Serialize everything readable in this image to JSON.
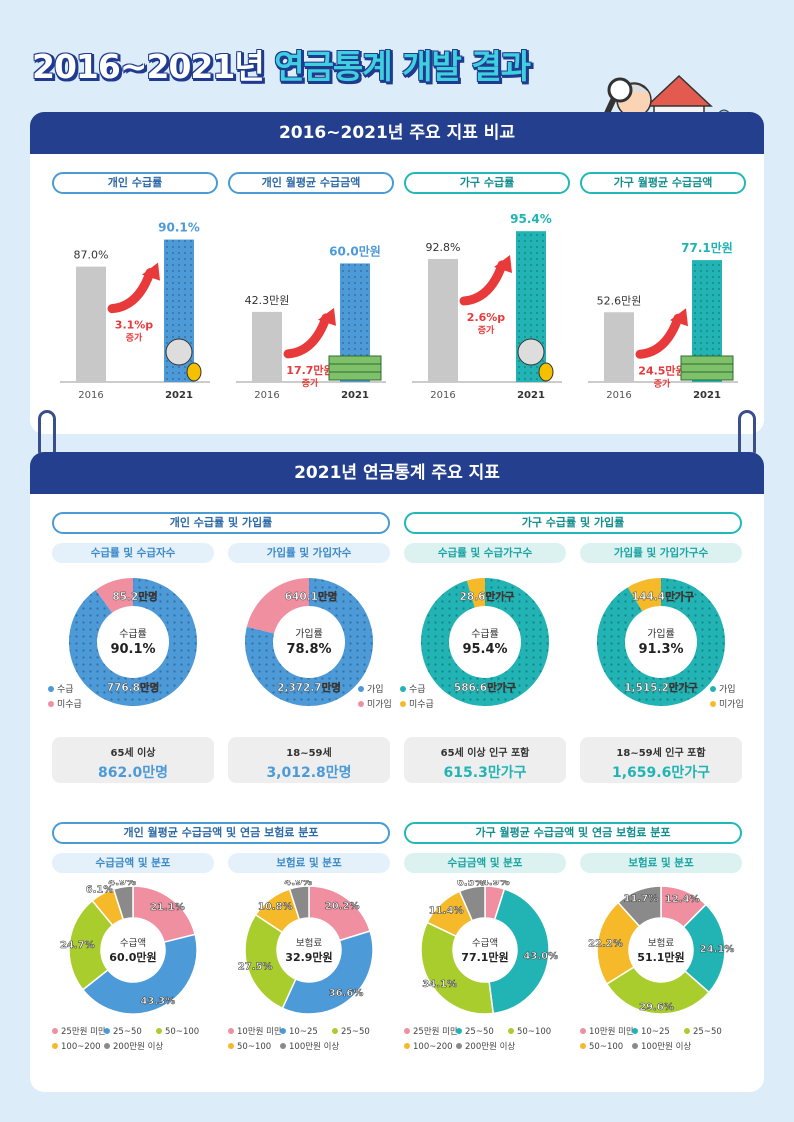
{
  "title": {
    "pre": "2016~2021년 ",
    "hl": "연금통계 개발 결과"
  },
  "section1": {
    "heading": "2016~2021년 주요 지표 비교",
    "panels": [
      {
        "pill": "개인 수급률",
        "teal": false,
        "v2016": "87.0%",
        "v2021": "90.1%",
        "change": "3.1%p",
        "inc": "증가",
        "val2016": 87.0,
        "val2021": 90.1,
        "max": 100,
        "x2016": "2016",
        "x2021": "2021"
      },
      {
        "pill": "개인 월평균 수급금액",
        "teal": false,
        "v2016": "42.3만원",
        "v2021": "60.0만원",
        "change": "17.7만원",
        "inc": "증가",
        "val2016": 42.3,
        "val2021": 60.0,
        "max": 80,
        "x2016": "2016",
        "x2021": "2021"
      },
      {
        "pill": "가구 수급률",
        "teal": true,
        "v2016": "92.8%",
        "v2021": "95.4%",
        "change": "2.6%p",
        "inc": "증가",
        "val2016": 92.8,
        "val2021": 95.4,
        "max": 100,
        "x2016": "2016",
        "x2021": "2021"
      },
      {
        "pill": "가구 월평균 수급금액",
        "teal": true,
        "v2016": "52.6만원",
        "v2021": "77.1만원",
        "change": "24.5만원",
        "inc": "증가",
        "val2016": 52.6,
        "val2021": 77.1,
        "max": 100,
        "x2016": "2016",
        "x2021": "2021"
      }
    ]
  },
  "section2": {
    "heading": "2021년 연금통계 주요 지표",
    "left_pill": "개인 수급률 및 가입률",
    "right_pill": "가구 수급률 및 가입률",
    "donuts": [
      {
        "sub": "수급률 및 수급자수",
        "center_label": "수급률",
        "center_value": "90.1%",
        "main_label": "776.8만명",
        "minor_label": "85.2만명",
        "leg1": "수급",
        "leg2": "미수급",
        "box_title": "65세 이상",
        "box_value": "862.0만명"
      },
      {
        "sub": "가입률 및 가입자수",
        "center_label": "가입률",
        "center_value": "78.8%",
        "main_label": "2,372.7만명",
        "minor_label": "640.1만명",
        "leg1": "가입",
        "leg2": "미가입",
        "box_title": "18~59세",
        "box_value": "3,012.8만명"
      },
      {
        "sub": "수급률 및 수급가구수",
        "center_label": "수급률",
        "center_value": "95.4%",
        "main_label": "586.6만가구",
        "minor_label": "28.6만가구",
        "leg1": "수급",
        "leg2": "미수급",
        "box_title": "65세 이상 인구 포함",
        "box_value": "615.3만가구"
      },
      {
        "sub": "가입률 및 가입가구수",
        "center_label": "가입률",
        "center_value": "91.3%",
        "main_label": "1,515.2만가구",
        "minor_label": "144.4만가구",
        "leg1": "가입",
        "leg2": "미가입",
        "box_title": "18~59세 인구 포함",
        "box_value": "1,659.6만가구"
      }
    ],
    "bottom_left_pill": "개인 월평균 수급금액 및 연금 보험료 분포",
    "bottom_right_pill": "가구 월평균 수급금액 및 연금 보험료 분포",
    "dist": [
      {
        "sub": "수급금액 및 분포",
        "center_label": "수급액",
        "center_value": "60.0만원",
        "legend": [
          "25만원 미만",
          "25~50",
          "50~100",
          "100~200",
          "200만원 이상"
        ]
      },
      {
        "sub": "보험료 및 분포",
        "center_label": "보험료",
        "center_value": "32.9만원",
        "legend": [
          "10만원 미만",
          "10~25",
          "25~50",
          "50~100",
          "100만원 이상"
        ]
      },
      {
        "sub": "수급금액 및 분포",
        "center_label": "수급액",
        "center_value": "77.1만원",
        "legend": [
          "25만원 미만",
          "25~50",
          "50~100",
          "100~200",
          "200만원 이상"
        ]
      },
      {
        "sub": "보험료 및 분포",
        "center_label": "보험료",
        "center_value": "51.1만원",
        "legend": [
          "10만원 미만",
          "10~25",
          "25~50",
          "50~100",
          "100만원 이상"
        ]
      }
    ]
  },
  "chart_data": [
    {
      "type": "bar",
      "categories": [
        "2016",
        "2021"
      ],
      "series": [
        {
          "values": [
            87.0,
            90.1
          ]
        }
      ]
    },
    {
      "type": "bar",
      "categories": [
        "2016",
        "2021"
      ],
      "series": [
        {
          "values": [
            42.3,
            60.0
          ]
        }
      ]
    },
    {
      "type": "bar",
      "categories": [
        "2016",
        "2021"
      ],
      "series": [
        {
          "values": [
            92.8,
            95.4
          ]
        }
      ]
    },
    {
      "type": "bar",
      "categories": [
        "2016",
        "2021"
      ],
      "series": [
        {
          "values": [
            52.6,
            77.1
          ]
        }
      ]
    },
    {
      "type": "pie",
      "labels": [
        "수급",
        "미수급"
      ],
      "values": [
        90.1,
        9.9
      ]
    },
    {
      "type": "pie",
      "labels": [
        "가입",
        "미가입"
      ],
      "values": [
        78.8,
        21.2
      ]
    },
    {
      "type": "pie",
      "labels": [
        "수급",
        "미수급"
      ],
      "values": [
        95.4,
        4.6
      ]
    },
    {
      "type": "pie",
      "labels": [
        "가입",
        "미가입"
      ],
      "values": [
        91.3,
        8.7
      ]
    },
    {
      "type": "pie",
      "labels": [
        "25만원 미만",
        "25~50",
        "50~100",
        "100~200",
        "200만원 이상"
      ],
      "values": [
        21.1,
        43.3,
        24.7,
        6.1,
        4.9
      ]
    },
    {
      "type": "pie",
      "labels": [
        "10만원 미만",
        "10~25",
        "25~50",
        "50~100",
        "100만원 이상"
      ],
      "values": [
        20.2,
        36.6,
        27.5,
        10.8,
        4.9
      ]
    },
    {
      "type": "pie",
      "labels": [
        "25만원 미만",
        "25~50",
        "50~100",
        "100~200",
        "200만원 이상"
      ],
      "values": [
        4.9,
        43.0,
        34.1,
        11.4,
        6.5
      ]
    },
    {
      "type": "pie",
      "labels": [
        "10만원 미만",
        "10~25",
        "25~50",
        "50~100",
        "100만원 이상"
      ],
      "values": [
        12.4,
        24.1,
        29.6,
        22.2,
        11.7
      ]
    }
  ],
  "colors": {
    "blue": "#4d9ad8",
    "teal": "#22b4b4",
    "pink": "#ef8fa0",
    "yellow": "#f5b92a",
    "green": "#a9cd2c",
    "gray": "#8a8a8a",
    "bar_gray": "#c8c8c8",
    "arrow": "#e83a3a",
    "navy": "#233f8e"
  }
}
